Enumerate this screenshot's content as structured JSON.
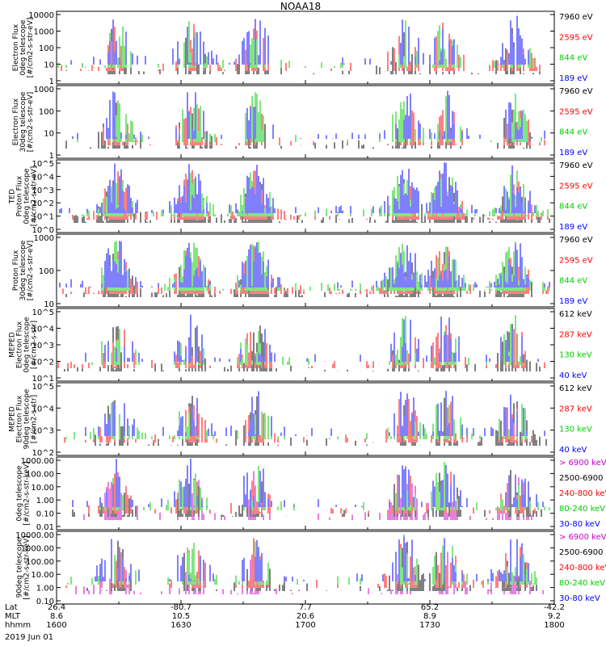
{
  "chart_data": {
    "type": "line",
    "title": "NOAA18",
    "date_label": "2019 Jun 01",
    "footer_rows": [
      {
        "label": "Lat",
        "values": [
          "26.4",
          "-80.7",
          "7.7",
          "65.2",
          "-42.2"
        ]
      },
      {
        "label": "MLT",
        "values": [
          "8.6",
          "10.5",
          "20.6",
          "8.9",
          "9.2"
        ]
      },
      {
        "label": "hhmm",
        "values": [
          "1600",
          "1630",
          "1700",
          "1730",
          "1800"
        ]
      }
    ],
    "panels": [
      {
        "ylabel": [
          "Electron Flux",
          "0deg telescope",
          "[#/cm2-s-str-eV]"
        ],
        "yticks": [
          "10000",
          "1000",
          "100",
          "10",
          "1"
        ],
        "log_decades": [
          0,
          4
        ],
        "channels": [
          {
            "label": "7960 eV",
            "color": "#000000"
          },
          {
            "label": "2595 eV",
            "color": "#ff0000"
          },
          {
            "label": "844 eV",
            "color": "#00cc00"
          },
          {
            "label": "189 eV",
            "color": "#0000ff"
          }
        ]
      },
      {
        "ylabel": [
          "Electron Flux",
          "30deg telescope",
          "[#/cm2-s-str-eV]"
        ],
        "yticks": [
          "1000",
          "100",
          "10",
          "1"
        ],
        "log_decades": [
          0,
          3
        ],
        "channels": [
          {
            "label": "7960 eV",
            "color": "#000000"
          },
          {
            "label": "2595 eV",
            "color": "#ff0000"
          },
          {
            "label": "844 eV",
            "color": "#00cc00"
          },
          {
            "label": "189 eV",
            "color": "#0000ff"
          }
        ]
      },
      {
        "ylabel": [
          "TED",
          "Proton Flux",
          "0deg telescope",
          "[#/cm2-s-str-eV]"
        ],
        "yticks": [
          "10^5",
          "10^4",
          "10^3",
          "10^2",
          "10^1",
          "10^0"
        ],
        "log_decades": [
          0,
          5
        ],
        "channels": [
          {
            "label": "7960 eV",
            "color": "#000000"
          },
          {
            "label": "2595 eV",
            "color": "#ff0000"
          },
          {
            "label": "844 eV",
            "color": "#00cc00"
          },
          {
            "label": "189 eV",
            "color": "#0000ff"
          }
        ]
      },
      {
        "ylabel": [
          "Proton Flux",
          "30deg telescope",
          "[#/cm2-s-str-eV]"
        ],
        "yticks": [
          "1000",
          "100",
          "10"
        ],
        "log_decades": [
          0.3,
          3.4
        ],
        "channels": [
          {
            "label": "7960 eV",
            "color": "#000000"
          },
          {
            "label": "2595 eV",
            "color": "#ff0000"
          },
          {
            "label": "844 eV",
            "color": "#00cc00"
          },
          {
            "label": "189 eV",
            "color": "#0000ff"
          }
        ]
      },
      {
        "ylabel": [
          "MEPED",
          "Electron Flux",
          "0deg telescope",
          "[#/cm2-s-str]"
        ],
        "yticks": [
          "10^5",
          "10^4",
          "10^3",
          "10^2",
          "10^1"
        ],
        "log_decades": [
          1,
          5
        ],
        "channels": [
          {
            "label": "612 keV",
            "color": "#000000"
          },
          {
            "label": "287 keV",
            "color": "#ff0000"
          },
          {
            "label": "130 keV",
            "color": "#00cc00"
          },
          {
            "label": "40 keV",
            "color": "#0000ff"
          }
        ]
      },
      {
        "ylabel": [
          "MEPED",
          "Electron Flux",
          "90deg telescope",
          "[#/cm2-s-str]"
        ],
        "yticks": [
          "10^5",
          "10^4",
          "10^3",
          "10^2"
        ],
        "log_decades": [
          1.8,
          5.2
        ],
        "channels": [
          {
            "label": "612 keV",
            "color": "#000000"
          },
          {
            "label": "287 keV",
            "color": "#ff0000"
          },
          {
            "label": "130 keV",
            "color": "#00cc00"
          },
          {
            "label": "40 keV",
            "color": "#0000ff"
          }
        ]
      },
      {
        "ylabel": [
          "0deg telescope",
          "[#/cm2-s-str-keV]"
        ],
        "yticks": [
          "1000.00",
          "100.00",
          "10.00",
          "1.00",
          "0.10",
          "0.01"
        ],
        "log_decades": [
          -2,
          3
        ],
        "channels": [
          {
            "label": "> 6900 keV",
            "color": "#cc00cc"
          },
          {
            "label": "2500-6900",
            "color": "#000000"
          },
          {
            "label": "240-800 keV",
            "color": "#ff0000"
          },
          {
            "label": "80-240 keV",
            "color": "#00cc00"
          },
          {
            "label": "30-80 keV",
            "color": "#0000ff"
          }
        ]
      },
      {
        "ylabel": [
          "90deg telescope",
          "[#/cm2-s-str-keV]"
        ],
        "yticks": [
          "10000.00",
          "1000.00",
          "100.00",
          "10.00",
          "1.00",
          "0.10"
        ],
        "log_decades": [
          -1,
          4
        ],
        "channels": [
          {
            "label": "> 6900 keV",
            "color": "#cc00cc"
          },
          {
            "label": "2500-6900",
            "color": "#000000"
          },
          {
            "label": "240-800 keV",
            "color": "#ff0000"
          },
          {
            "label": "80-240 keV",
            "color": "#00cc00"
          },
          {
            "label": "30-80 keV",
            "color": "#0000ff"
          }
        ]
      }
    ]
  }
}
